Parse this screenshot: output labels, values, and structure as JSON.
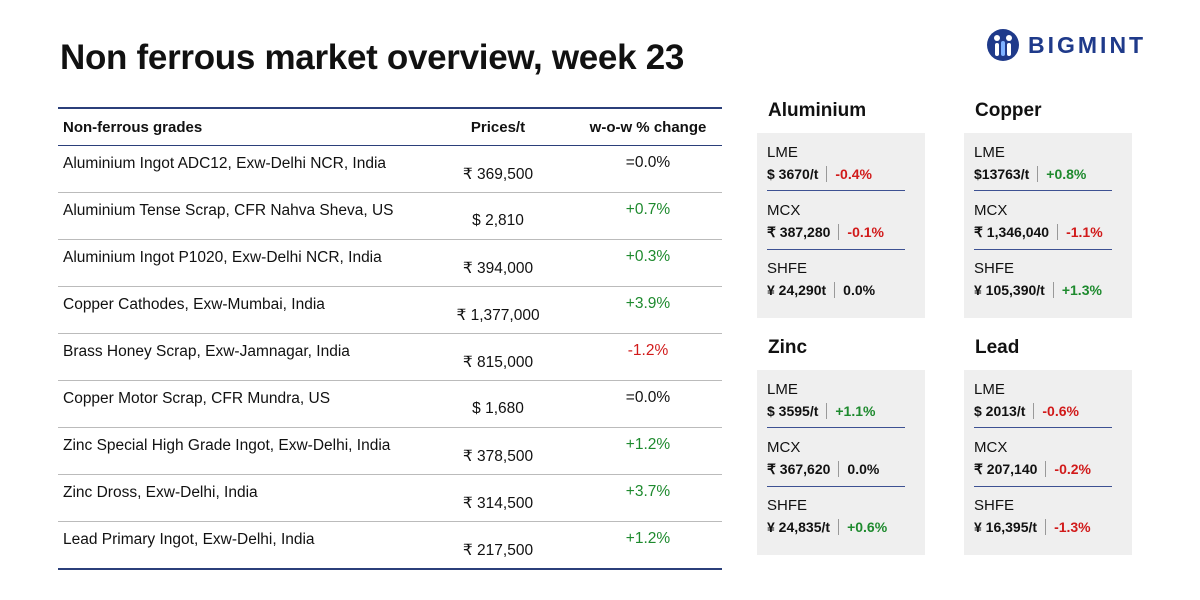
{
  "header": {
    "title": "Non ferrous market overview, week 23",
    "logo": "BIGMINT"
  },
  "table": {
    "columns": [
      "Non-ferrous grades",
      "Prices/t",
      "w-o-w % change"
    ],
    "rows": [
      [
        "Aluminium Ingot ADC12, Exw-Delhi NCR, India",
        "₹ 369,500",
        "=0.0%"
      ],
      [
        "Aluminium Tense Scrap, CFR Nahva Sheva, US",
        "$ 2,810",
        "+0.7%"
      ],
      [
        "Aluminium Ingot P1020, Exw-Delhi NCR, India",
        "₹ 394,000",
        "+0.3%"
      ],
      [
        "Copper Cathodes, Exw-Mumbai, India",
        "₹ 1,377,000",
        "+3.9%"
      ],
      [
        "Brass Honey Scrap, Exw-Jamnagar, India",
        "₹ 815,000",
        "-1.2%"
      ],
      [
        "Copper Motor Scrap, CFR Mundra, US",
        "$ 1,680",
        "=0.0%"
      ],
      [
        "Zinc Special High Grade Ingot, Exw-Delhi, India",
        "₹ 378,500",
        "+1.2%"
      ],
      [
        "Zinc Dross, Exw-Delhi, India",
        "₹ 314,500",
        "+3.7%"
      ],
      [
        "Lead Primary Ingot, Exw-Delhi, India",
        "₹ 217,500",
        "+1.2%"
      ]
    ]
  },
  "panels": [
    {
      "title": "Aluminium",
      "items": [
        {
          "exchange": "LME",
          "price": "$ 3670/t",
          "change": "-0.4%"
        },
        {
          "exchange": "MCX",
          "price": "₹ 387,280",
          "change": "-0.1%"
        },
        {
          "exchange": "SHFE",
          "price": "¥ 24,290t",
          "change": "0.0%"
        }
      ]
    },
    {
      "title": "Copper",
      "items": [
        {
          "exchange": "LME",
          "price": "$13763/t",
          "change": "+0.8%"
        },
        {
          "exchange": "MCX",
          "price": "₹ 1,346,040",
          "change": "-1.1%"
        },
        {
          "exchange": "SHFE",
          "price": "¥ 105,390/t",
          "change": "+1.3%"
        }
      ]
    },
    {
      "title": "Zinc",
      "items": [
        {
          "exchange": "LME",
          "price": "$ 3595/t",
          "change": "+1.1%"
        },
        {
          "exchange": "MCX",
          "price": "₹ 367,620",
          "change": "0.0%"
        },
        {
          "exchange": "SHFE",
          "price": "¥ 24,835/t",
          "change": "+0.6%"
        }
      ]
    },
    {
      "title": "Lead",
      "items": [
        {
          "exchange": "LME",
          "price": "$ 2013/t",
          "change": "-0.6%"
        },
        {
          "exchange": "MCX",
          "price": "₹ 207,140",
          "change": "-0.2%"
        },
        {
          "exchange": "SHFE",
          "price": "¥ 16,395/t",
          "change": "-1.3%"
        }
      ]
    }
  ]
}
